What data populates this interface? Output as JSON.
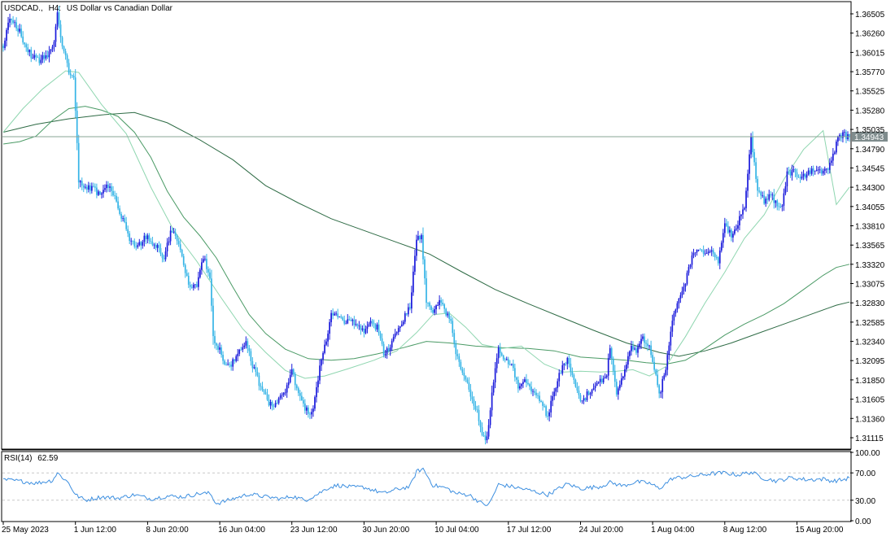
{
  "header": {
    "symbol": "USDCAD.,",
    "timeframe": "H4:",
    "description": "US Dollar vs Canadian Dollar"
  },
  "rsi_panel": {
    "title": "RSI(14)",
    "value": "62.59"
  },
  "colors": {
    "bull_candle": "#1a1adb",
    "bear_candle": "#35b4e6",
    "ma_fast": "#8fd6b0",
    "ma_mid": "#4a9a65",
    "ma_slow": "#2e6b45",
    "price_line": "#8aa596",
    "price_tag": "#7f8c8d",
    "rsi_line": "#3d8fe0",
    "grid": "#c8c8c8"
  },
  "chart_data": [
    {
      "type": "candlestick",
      "title": "USDCAD., H4: US Dollar vs Canadian Dollar",
      "current_price": 1.34943,
      "current_price_label": "1.34943",
      "y_ticks": [
        "1.36505",
        "1.36260",
        "1.36015",
        "1.35770",
        "1.35525",
        "1.35280",
        "1.35035",
        "1.34790",
        "1.34545",
        "1.34300",
        "1.34055",
        "1.33810",
        "1.33565",
        "1.33320",
        "1.33075",
        "1.32830",
        "1.32585",
        "1.32340",
        "1.32095",
        "1.31850",
        "1.31605",
        "1.31360",
        "1.31115"
      ],
      "ylim": [
        1.3098,
        1.3665
      ],
      "x_tick_labels": [
        "25 May 2023",
        "1 Jun 12:00",
        "8 Jun 20:00",
        "16 Jun 04:00",
        "23 Jun 12:00",
        "30 Jun 20:00",
        "10 Jul 04:00",
        "17 Jul 12:00",
        "24 Jul 20:00",
        "1 Aug 04:00",
        "8 Aug 12:00",
        "15 Aug 20:00"
      ],
      "x_tick_bars": [
        0,
        44,
        88,
        132,
        176,
        220,
        264,
        308,
        352,
        396,
        440,
        484
      ],
      "close_anchors": [
        [
          0,
          1.361
        ],
        [
          3,
          1.364
        ],
        [
          6,
          1.3642
        ],
        [
          10,
          1.3628
        ],
        [
          14,
          1.3606
        ],
        [
          18,
          1.3596
        ],
        [
          22,
          1.3592
        ],
        [
          26,
          1.3598
        ],
        [
          30,
          1.3605
        ],
        [
          33,
          1.3648
        ],
        [
          36,
          1.3612
        ],
        [
          40,
          1.3578
        ],
        [
          43,
          1.3566
        ],
        [
          46,
          1.344
        ],
        [
          50,
          1.3428
        ],
        [
          54,
          1.343
        ],
        [
          58,
          1.3421
        ],
        [
          62,
          1.3432
        ],
        [
          66,
          1.3426
        ],
        [
          70,
          1.3406
        ],
        [
          74,
          1.3382
        ],
        [
          78,
          1.3361
        ],
        [
          82,
          1.3352
        ],
        [
          86,
          1.3368
        ],
        [
          90,
          1.3361
        ],
        [
          94,
          1.3353
        ],
        [
          98,
          1.3338
        ],
        [
          102,
          1.3372
        ],
        [
          106,
          1.3366
        ],
        [
          110,
          1.333
        ],
        [
          114,
          1.3303
        ],
        [
          118,
          1.3306
        ],
        [
          122,
          1.3342
        ],
        [
          126,
          1.3318
        ],
        [
          128,
          1.3238
        ],
        [
          132,
          1.3222
        ],
        [
          136,
          1.3201
        ],
        [
          140,
          1.3208
        ],
        [
          144,
          1.3226
        ],
        [
          148,
          1.3232
        ],
        [
          152,
          1.3203
        ],
        [
          156,
          1.3181
        ],
        [
          160,
          1.3164
        ],
        [
          164,
          1.3149
        ],
        [
          168,
          1.3158
        ],
        [
          172,
          1.3172
        ],
        [
          176,
          1.3195
        ],
        [
          180,
          1.3168
        ],
        [
          184,
          1.315
        ],
        [
          188,
          1.3141
        ],
        [
          191,
          1.3174
        ],
        [
          194,
          1.3212
        ],
        [
          198,
          1.324
        ],
        [
          200,
          1.3268
        ],
        [
          204,
          1.3268
        ],
        [
          208,
          1.3259
        ],
        [
          212,
          1.3262
        ],
        [
          216,
          1.3255
        ],
        [
          220,
          1.3248
        ],
        [
          224,
          1.3258
        ],
        [
          228,
          1.3252
        ],
        [
          232,
          1.3218
        ],
        [
          236,
          1.3229
        ],
        [
          240,
          1.3245
        ],
        [
          244,
          1.3262
        ],
        [
          248,
          1.3279
        ],
        [
          252,
          1.3363
        ],
        [
          255,
          1.3366
        ],
        [
          258,
          1.3285
        ],
        [
          262,
          1.3271
        ],
        [
          266,
          1.3288
        ],
        [
          270,
          1.3267
        ],
        [
          273,
          1.3262
        ],
        [
          276,
          1.322
        ],
        [
          280,
          1.3196
        ],
        [
          284,
          1.3172
        ],
        [
          288,
          1.3151
        ],
        [
          292,
          1.3118
        ],
        [
          295,
          1.311
        ],
        [
          298,
          1.317
        ],
        [
          302,
          1.3222
        ],
        [
          306,
          1.3212
        ],
        [
          310,
          1.3205
        ],
        [
          314,
          1.3178
        ],
        [
          318,
          1.3186
        ],
        [
          322,
          1.317
        ],
        [
          326,
          1.3161
        ],
        [
          330,
          1.315
        ],
        [
          332,
          1.3136
        ],
        [
          336,
          1.3172
        ],
        [
          340,
          1.3196
        ],
        [
          344,
          1.3214
        ],
        [
          348,
          1.3184
        ],
        [
          352,
          1.3155
        ],
        [
          356,
          1.3166
        ],
        [
          360,
          1.3172
        ],
        [
          364,
          1.3182
        ],
        [
          368,
          1.3191
        ],
        [
          370,
          1.3228
        ],
        [
          374,
          1.3168
        ],
        [
          378,
          1.319
        ],
        [
          382,
          1.3226
        ],
        [
          386,
          1.3223
        ],
        [
          390,
          1.3236
        ],
        [
          394,
          1.3226
        ],
        [
          398,
          1.319
        ],
        [
          400,
          1.3165
        ],
        [
          404,
          1.3201
        ],
        [
          408,
          1.3262
        ],
        [
          412,
          1.3285
        ],
        [
          416,
          1.331
        ],
        [
          420,
          1.334
        ],
        [
          424,
          1.3354
        ],
        [
          428,
          1.3346
        ],
        [
          432,
          1.3351
        ],
        [
          436,
          1.3337
        ],
        [
          440,
          1.3383
        ],
        [
          444,
          1.337
        ],
        [
          448,
          1.3385
        ],
        [
          452,
          1.3404
        ],
        [
          456,
          1.349
        ],
        [
          460,
          1.3428
        ],
        [
          464,
          1.3413
        ],
        [
          468,
          1.342
        ],
        [
          472,
          1.3407
        ],
        [
          475,
          1.3408
        ],
        [
          478,
          1.3447
        ],
        [
          482,
          1.345
        ],
        [
          486,
          1.3442
        ],
        [
          490,
          1.3447
        ],
        [
          494,
          1.3454
        ],
        [
          498,
          1.3448
        ],
        [
          502,
          1.345
        ],
        [
          506,
          1.3473
        ],
        [
          509,
          1.349
        ],
        [
          512,
          1.3497
        ],
        [
          516,
          1.3494
        ]
      ],
      "rsi_anchors": [
        [
          0,
          60
        ],
        [
          10,
          58
        ],
        [
          20,
          55
        ],
        [
          30,
          59
        ],
        [
          33,
          70
        ],
        [
          40,
          55
        ],
        [
          44,
          38
        ],
        [
          50,
          30
        ],
        [
          60,
          35
        ],
        [
          70,
          33
        ],
        [
          80,
          38
        ],
        [
          90,
          32
        ],
        [
          100,
          36
        ],
        [
          110,
          35
        ],
        [
          120,
          40
        ],
        [
          126,
          40
        ],
        [
          130,
          25
        ],
        [
          140,
          32
        ],
        [
          150,
          39
        ],
        [
          160,
          35
        ],
        [
          170,
          32
        ],
        [
          176,
          36
        ],
        [
          184,
          30
        ],
        [
          191,
          38
        ],
        [
          198,
          48
        ],
        [
          204,
          52
        ],
        [
          212,
          49
        ],
        [
          220,
          49
        ],
        [
          232,
          40
        ],
        [
          240,
          46
        ],
        [
          248,
          50
        ],
        [
          252,
          72
        ],
        [
          256,
          76
        ],
        [
          262,
          52
        ],
        [
          270,
          48
        ],
        [
          276,
          40
        ],
        [
          284,
          38
        ],
        [
          292,
          25
        ],
        [
          296,
          23
        ],
        [
          302,
          53
        ],
        [
          310,
          50
        ],
        [
          322,
          44
        ],
        [
          332,
          38
        ],
        [
          344,
          54
        ],
        [
          352,
          47
        ],
        [
          364,
          50
        ],
        [
          370,
          56
        ],
        [
          378,
          51
        ],
        [
          386,
          57
        ],
        [
          394,
          55
        ],
        [
          400,
          47
        ],
        [
          408,
          62
        ],
        [
          420,
          65
        ],
        [
          432,
          69
        ],
        [
          440,
          70
        ],
        [
          448,
          67
        ],
        [
          456,
          71
        ],
        [
          464,
          62
        ],
        [
          472,
          58
        ],
        [
          480,
          63
        ],
        [
          490,
          60
        ],
        [
          500,
          61
        ],
        [
          506,
          58
        ],
        [
          512,
          60
        ],
        [
          516,
          62.59
        ]
      ],
      "ma_fast_anchors": [
        [
          0,
          1.35
        ],
        [
          12,
          1.353
        ],
        [
          24,
          1.3555
        ],
        [
          38,
          1.3578
        ],
        [
          46,
          1.3576
        ],
        [
          60,
          1.3535
        ],
        [
          75,
          1.3498
        ],
        [
          90,
          1.343
        ],
        [
          104,
          1.3375
        ],
        [
          118,
          1.3336
        ],
        [
          132,
          1.3292
        ],
        [
          146,
          1.325
        ],
        [
          160,
          1.322
        ],
        [
          172,
          1.3197
        ],
        [
          184,
          1.3187
        ],
        [
          196,
          1.319
        ],
        [
          210,
          1.3199
        ],
        [
          226,
          1.321
        ],
        [
          240,
          1.3222
        ],
        [
          252,
          1.3245
        ],
        [
          262,
          1.3268
        ],
        [
          272,
          1.327
        ],
        [
          282,
          1.3252
        ],
        [
          292,
          1.323
        ],
        [
          304,
          1.3225
        ],
        [
          316,
          1.3228
        ],
        [
          330,
          1.3205
        ],
        [
          342,
          1.3195
        ],
        [
          352,
          1.3196
        ],
        [
          364,
          1.3195
        ],
        [
          374,
          1.3196
        ],
        [
          384,
          1.3198
        ],
        [
          394,
          1.319
        ],
        [
          404,
          1.3202
        ],
        [
          416,
          1.324
        ],
        [
          428,
          1.3283
        ],
        [
          440,
          1.3322
        ],
        [
          452,
          1.3365
        ],
        [
          464,
          1.3395
        ],
        [
          476,
          1.344
        ],
        [
          488,
          1.3478
        ],
        [
          500,
          1.3502
        ],
        [
          508,
          1.3408
        ],
        [
          516,
          1.343
        ]
      ],
      "ma_mid_anchors": [
        [
          0,
          1.3485
        ],
        [
          10,
          1.3488
        ],
        [
          20,
          1.3495
        ],
        [
          30,
          1.3515
        ],
        [
          40,
          1.353
        ],
        [
          50,
          1.3533
        ],
        [
          60,
          1.3528
        ],
        [
          70,
          1.352
        ],
        [
          80,
          1.35
        ],
        [
          90,
          1.3468
        ],
        [
          100,
          1.3425
        ],
        [
          110,
          1.3392
        ],
        [
          120,
          1.3368
        ],
        [
          130,
          1.334
        ],
        [
          140,
          1.3303
        ],
        [
          150,
          1.3268
        ],
        [
          160,
          1.3244
        ],
        [
          172,
          1.3224
        ],
        [
          186,
          1.3212
        ],
        [
          200,
          1.321
        ],
        [
          214,
          1.3212
        ],
        [
          228,
          1.3218
        ],
        [
          244,
          1.3226
        ],
        [
          258,
          1.3234
        ],
        [
          272,
          1.3232
        ],
        [
          288,
          1.3228
        ],
        [
          304,
          1.3226
        ],
        [
          320,
          1.3225
        ],
        [
          336,
          1.3222
        ],
        [
          352,
          1.3214
        ],
        [
          366,
          1.3212
        ],
        [
          380,
          1.321
        ],
        [
          392,
          1.3207
        ],
        [
          404,
          1.3205
        ],
        [
          416,
          1.321
        ],
        [
          428,
          1.3225
        ],
        [
          440,
          1.3242
        ],
        [
          452,
          1.3256
        ],
        [
          464,
          1.3268
        ],
        [
          476,
          1.3282
        ],
        [
          488,
          1.33
        ],
        [
          500,
          1.3318
        ],
        [
          508,
          1.3328
        ],
        [
          516,
          1.3332
        ]
      ],
      "ma_slow_anchors": [
        [
          0,
          1.35
        ],
        [
          20,
          1.351
        ],
        [
          40,
          1.3517
        ],
        [
          60,
          1.3522
        ],
        [
          80,
          1.3525
        ],
        [
          100,
          1.3512
        ],
        [
          120,
          1.349
        ],
        [
          140,
          1.3465
        ],
        [
          160,
          1.3432
        ],
        [
          180,
          1.341
        ],
        [
          200,
          1.339
        ],
        [
          220,
          1.3375
        ],
        [
          240,
          1.336
        ],
        [
          260,
          1.3345
        ],
        [
          280,
          1.3322
        ],
        [
          300,
          1.33
        ],
        [
          320,
          1.3282
        ],
        [
          340,
          1.3265
        ],
        [
          360,
          1.3248
        ],
        [
          380,
          1.3232
        ],
        [
          400,
          1.322
        ],
        [
          412,
          1.3215
        ],
        [
          428,
          1.3222
        ],
        [
          444,
          1.3232
        ],
        [
          460,
          1.3244
        ],
        [
          476,
          1.3256
        ],
        [
          492,
          1.3268
        ],
        [
          508,
          1.328
        ],
        [
          516,
          1.3284
        ]
      ]
    },
    {
      "type": "line",
      "title": "RSI(14) 62.59",
      "ylim": [
        0,
        100
      ],
      "y_ticks": [
        "100.00",
        "70.00",
        "30.00",
        "0.00"
      ],
      "levels": [
        70,
        30
      ]
    }
  ]
}
